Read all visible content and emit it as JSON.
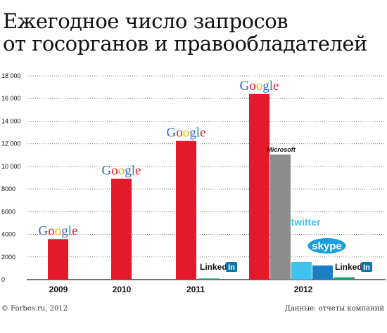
{
  "title_line1": "Ежегодное число запросов",
  "title_line2": "от госорганов и правообладателей",
  "footer_left": "© Forbes.ru, 2012",
  "footer_right": "Данные: отчеты компаний",
  "colors": {
    "google": "#e4192a",
    "microsoft": "#8c8c8c",
    "twitter": "#3cc3f0",
    "skype": "#1b7ec4",
    "linkedin": "#1ca07a"
  },
  "chart_data": {
    "type": "bar",
    "ylim": [
      0,
      18000
    ],
    "yticks": [
      "0",
      "2000",
      "4000",
      "6000",
      "8000",
      "10 000",
      "12 000",
      "14 000",
      "16 000",
      "18 000"
    ],
    "categories": [
      "2009",
      "2010",
      "2011",
      "2012"
    ],
    "bars": [
      {
        "category": "2009",
        "company": "Google",
        "value": 3580,
        "label": "Google"
      },
      {
        "category": "2010",
        "company": "Google",
        "value": 8900,
        "label": "Google"
      },
      {
        "category": "2011",
        "company": "Google",
        "value": 12250,
        "label": "Google"
      },
      {
        "category": "2011",
        "company": "LinkedIn",
        "value": 100,
        "label": "LinkedIn"
      },
      {
        "category": "2012",
        "company": "Google",
        "value": 16400,
        "label": "Google"
      },
      {
        "category": "2012",
        "company": "Microsoft",
        "value": 11050,
        "label": "Microsoft"
      },
      {
        "category": "2012",
        "company": "Twitter",
        "value": 1550,
        "label": "twitter"
      },
      {
        "category": "2012",
        "company": "Skype",
        "value": 1250,
        "label": "skype"
      },
      {
        "category": "2012",
        "company": "LinkedIn",
        "value": 200,
        "label": "LinkedIn"
      }
    ],
    "grid": true
  }
}
